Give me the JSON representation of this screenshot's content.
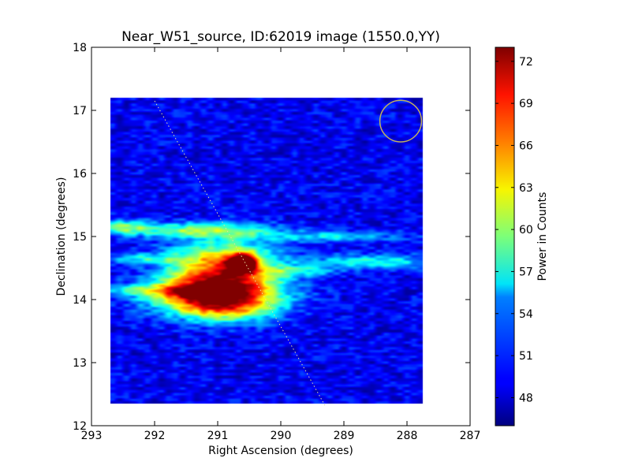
{
  "chart_data": {
    "type": "heatmap",
    "title": "Near_W51_source, ID:62019 image (1550.0,YY)",
    "xlabel": "Right Ascension (degrees)",
    "ylabel": "Declination (degrees)",
    "xlim": [
      293,
      287
    ],
    "ylim": [
      12,
      18
    ],
    "x_ticks": [
      "293",
      "292",
      "291",
      "290",
      "289",
      "288",
      "287"
    ],
    "y_ticks": [
      "12",
      "13",
      "14",
      "15",
      "16",
      "17",
      "18"
    ],
    "x_tick_values": [
      293,
      292,
      291,
      290,
      289,
      288,
      287
    ],
    "y_tick_values": [
      12,
      13,
      14,
      15,
      16,
      17,
      18
    ],
    "grid": false,
    "map_extent": {
      "ra": [
        292.7,
        287.75
      ],
      "dec": [
        12.35,
        17.2
      ]
    },
    "colorbar": {
      "label": "Power in Counts",
      "range": [
        46,
        73
      ],
      "colormap": "jet",
      "ticks": [
        "48",
        "51",
        "54",
        "57",
        "60",
        "63",
        "66",
        "69",
        "72"
      ],
      "tick_values": [
        48,
        51,
        54,
        57,
        60,
        63,
        66,
        69,
        72
      ]
    },
    "background_level": 49,
    "features": [
      {
        "ra": 290.9,
        "dec": 14.4,
        "ra_width": 0.6,
        "dec_width": 0.35,
        "peak": 70
      },
      {
        "ra": 290.6,
        "dec": 14.58,
        "ra_width": 0.15,
        "dec_width": 0.1,
        "peak": 72
      },
      {
        "ra": 291.2,
        "dec": 14.1,
        "ra_width": 0.7,
        "dec_width": 0.15,
        "peak": 64
      },
      {
        "ra": 290.9,
        "dec": 13.85,
        "ra_width": 0.6,
        "dec_width": 0.15,
        "peak": 60
      },
      {
        "ra": 291.3,
        "dec": 15.1,
        "ra_width": 0.8,
        "dec_width": 0.08,
        "peak": 59
      },
      {
        "ra": 292.5,
        "dec": 15.15,
        "ra_width": 0.3,
        "dec_width": 0.08,
        "peak": 58
      },
      {
        "ra": 288.5,
        "dec": 14.6,
        "ra_width": 0.7,
        "dec_width": 0.08,
        "peak": 57
      },
      {
        "ra": 289.2,
        "dec": 15.0,
        "ra_width": 0.8,
        "dec_width": 0.06,
        "peak": 55
      },
      {
        "ra": 292.2,
        "dec": 14.65,
        "ra_width": 0.5,
        "dec_width": 0.06,
        "peak": 55
      },
      {
        "ra": 289.7,
        "dec": 14.45,
        "ra_width": 0.4,
        "dec_width": 0.06,
        "peak": 55
      },
      {
        "ra": 292.0,
        "dec": 14.15,
        "ra_width": 0.6,
        "dec_width": 0.06,
        "peak": 54
      }
    ],
    "overlays": {
      "beam_circle": {
        "ra": 288.1,
        "dec": 16.83,
        "radius_deg": 0.33,
        "color": "#c0b060"
      },
      "track_line": {
        "points": [
          {
            "ra": 292.0,
            "dec": 17.15
          },
          {
            "ra": 289.3,
            "dec": 12.32
          }
        ],
        "color": "#e8e0a0",
        "style": "dotted"
      }
    }
  }
}
